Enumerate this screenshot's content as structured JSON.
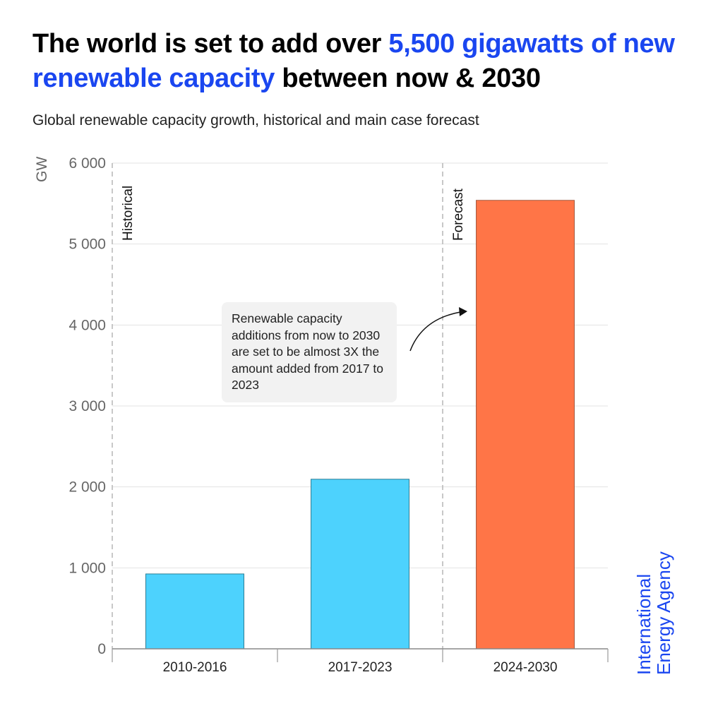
{
  "header": {
    "title_part1": "The world is set to add over ",
    "title_highlight": "5,500 gigawatts of new renewable capacity",
    "title_part2": " between now & 2030",
    "subtitle": "Global renewable capacity growth, historical and main case forecast"
  },
  "annotation": {
    "text": "Renewable capacity additions from now to 2030 are set to be almost 3X the amount added from 2017 to 2023"
  },
  "brand": {
    "line1": "International",
    "line2": "Energy Agency",
    "color": "#1a46f0"
  },
  "chart_data": {
    "type": "bar",
    "title": "The world is set to add over 5,500 gigawatts of new renewable capacity between now & 2030",
    "subtitle": "Global renewable capacity growth, historical and main case forecast",
    "xlabel": "",
    "ylabel": "GW",
    "ylim": [
      0,
      6000
    ],
    "yticks": [
      0,
      1000,
      2000,
      3000,
      4000,
      5000,
      6000
    ],
    "ytick_labels": [
      "0",
      "1 000",
      "2 000",
      "3 000",
      "4 000",
      "5 000",
      "6 000"
    ],
    "grid": true,
    "categories": [
      "2010-2016",
      "2017-2023",
      "2024-2030"
    ],
    "values": [
      925,
      2095,
      5540
    ],
    "bar_colors": [
      "#4dd2fd",
      "#4dd2fd",
      "#ff7547"
    ],
    "period_labels": [
      {
        "label": "Historical",
        "starts_before": "2010-2016"
      },
      {
        "label": "Forecast",
        "starts_before": "2024-2030"
      }
    ],
    "annotation": "Renewable capacity additions from now to 2030 are set to be almost 3X the amount added from 2017 to 2023"
  }
}
